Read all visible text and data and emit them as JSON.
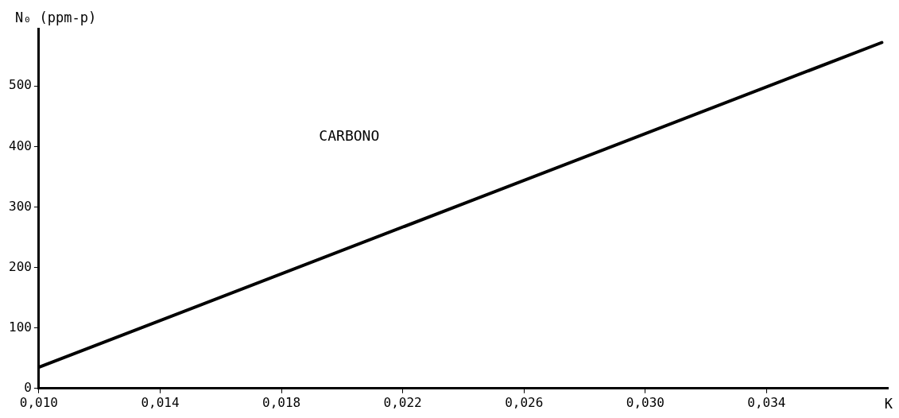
{
  "chart_data": {
    "type": "line",
    "xlabel": "K",
    "ylabel": "N₀ (ppm-p)",
    "annotations": [
      "CARBONO"
    ],
    "series": [
      {
        "color": "#000000",
        "x": [
          0.01,
          0.0378
        ],
        "values": [
          35,
          572
        ]
      }
    ],
    "xlim": [
      0.01,
      0.038
    ],
    "xticks": [
      {
        "value": 0.01,
        "label": "0,010"
      },
      {
        "value": 0.014,
        "label": "0,014"
      },
      {
        "value": 0.018,
        "label": "0,018"
      },
      {
        "value": 0.022,
        "label": "0,022"
      },
      {
        "value": 0.026,
        "label": "0,026"
      },
      {
        "value": 0.03,
        "label": "0,030"
      },
      {
        "value": 0.034,
        "label": "0,034"
      }
    ],
    "ylim": [
      0,
      595
    ],
    "yticks": [
      0,
      100,
      200,
      300,
      400,
      500
    ],
    "grid": false,
    "legend": false,
    "marker": "none",
    "line_style": "solid"
  }
}
